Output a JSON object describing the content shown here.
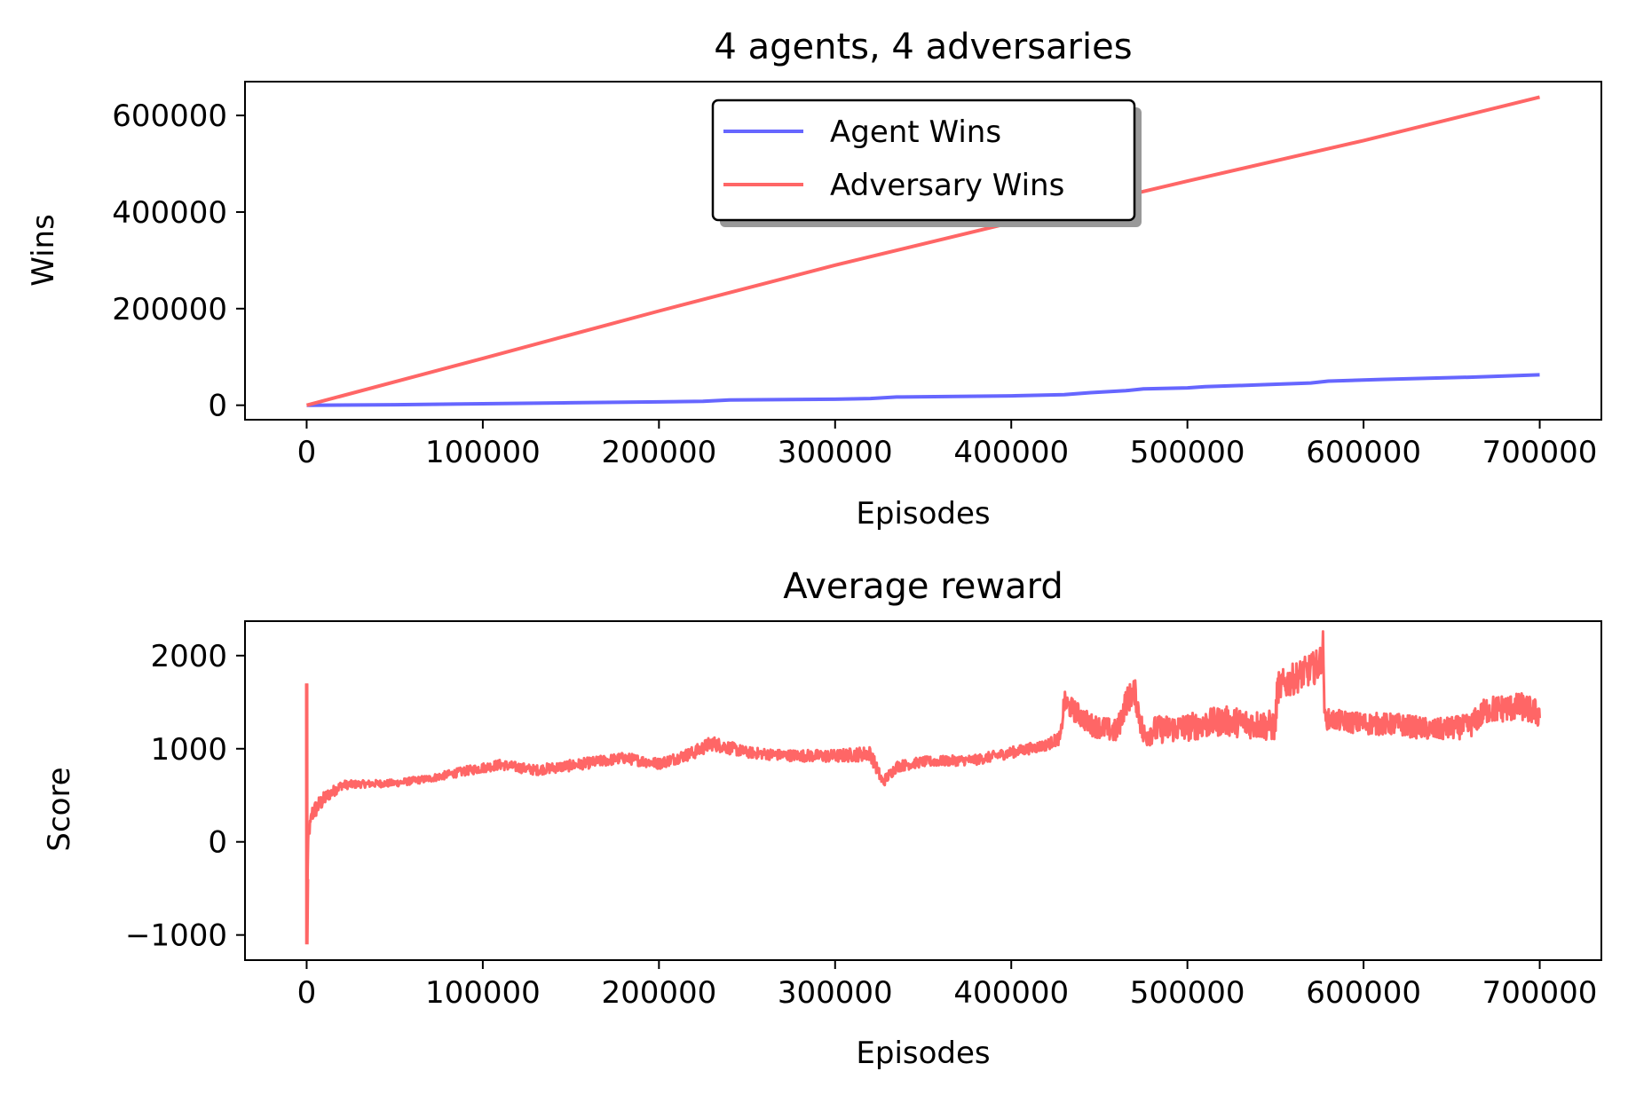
{
  "chart_data": [
    {
      "type": "line",
      "title": "4 agents, 4 adversaries",
      "xlabel": "Episodes",
      "ylabel": "Wins",
      "xlim": [
        -35000,
        735000
      ],
      "ylim": [
        -30000,
        670000
      ],
      "xticks": [
        0,
        100000,
        200000,
        300000,
        400000,
        500000,
        600000,
        700000
      ],
      "xtick_labels": [
        "0",
        "100000",
        "200000",
        "300000",
        "400000",
        "500000",
        "600000",
        "700000"
      ],
      "yticks": [
        0,
        200000,
        400000,
        600000
      ],
      "ytick_labels": [
        "0",
        "200000",
        "400000",
        "600000"
      ],
      "grid": false,
      "legend_position": "top-center",
      "series": [
        {
          "name": "Agent Wins",
          "color": "#6666ff",
          "x": [
            0,
            50000,
            100000,
            150000,
            200000,
            225000,
            240000,
            300000,
            320000,
            335000,
            400000,
            430000,
            445000,
            465000,
            475000,
            500000,
            510000,
            540000,
            570000,
            580000,
            610000,
            660000,
            700000
          ],
          "y": [
            0,
            1000,
            3000,
            5000,
            7000,
            8000,
            11000,
            12500,
            14000,
            17000,
            19500,
            22000,
            26000,
            30000,
            34000,
            36000,
            38500,
            42000,
            46000,
            50000,
            53500,
            58000,
            63000
          ]
        },
        {
          "name": "Adversary Wins",
          "color": "#ff6666",
          "x": [
            0,
            100000,
            200000,
            300000,
            400000,
            500000,
            600000,
            700000
          ],
          "y": [
            0,
            97000,
            195000,
            290000,
            378000,
            464000,
            548000,
            638000
          ]
        }
      ]
    },
    {
      "type": "line",
      "title": "Average reward",
      "xlabel": "Episodes",
      "ylabel": "Score",
      "xlim": [
        -35000,
        735000
      ],
      "ylim": [
        -1270,
        2370
      ],
      "xticks": [
        0,
        100000,
        200000,
        300000,
        400000,
        500000,
        600000,
        700000
      ],
      "xtick_labels": [
        "0",
        "100000",
        "200000",
        "300000",
        "400000",
        "500000",
        "600000",
        "700000"
      ],
      "yticks": [
        -1000,
        0,
        1000,
        2000
      ],
      "ytick_labels": [
        "−1000",
        "0",
        "1000",
        "2000"
      ],
      "grid": false,
      "series": [
        {
          "color": "#ff6666",
          "x": [
            0,
            100,
            500,
            1000,
            2000,
            3000,
            5000,
            8000,
            12000,
            20000,
            30000,
            50000,
            70000,
            90000,
            110000,
            130000,
            150000,
            180000,
            200000,
            220000,
            230000,
            250000,
            270000,
            300000,
            320000,
            327000,
            335000,
            350000,
            380000,
            400000,
            420000,
            428000,
            430000,
            445000,
            460000,
            465000,
            470000,
            475000,
            480000,
            500000,
            520000,
            540000,
            550000,
            551000,
            565000,
            575000,
            577000,
            578000,
            600000,
            620000,
            640000,
            660000,
            670000,
            690000,
            700000
          ],
          "y": [
            1700,
            -1100,
            -400,
            150,
            150,
            300,
            350,
            420,
            500,
            610,
            620,
            630,
            680,
            760,
            830,
            770,
            820,
            900,
            840,
            960,
            1060,
            960,
            930,
            920,
            950,
            640,
            810,
            860,
            880,
            960,
            1040,
            1120,
            1500,
            1260,
            1180,
            1500,
            1620,
            1140,
            1200,
            1230,
            1300,
            1260,
            1240,
            1650,
            1800,
            1900,
            2100,
            1320,
            1270,
            1260,
            1200,
            1240,
            1420,
            1450,
            1370
          ],
          "noise": [
            0,
            0,
            60,
            80,
            100,
            100,
            100,
            90,
            70,
            50,
            40,
            40,
            40,
            50,
            55,
            55,
            60,
            60,
            60,
            70,
            80,
            60,
            60,
            70,
            80,
            60,
            60,
            55,
            55,
            60,
            60,
            70,
            120,
            120,
            130,
            150,
            150,
            150,
            150,
            150,
            160,
            160,
            170,
            170,
            170,
            180,
            180,
            110,
            120,
            120,
            120,
            130,
            150,
            150,
            150
          ]
        }
      ]
    }
  ]
}
